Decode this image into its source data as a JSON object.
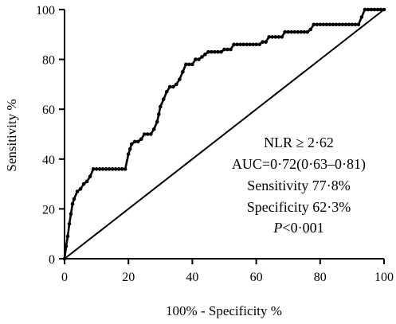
{
  "chart_data": {
    "type": "line",
    "xlabel": "100% - Specificity %",
    "ylabel": "Sensitivity %",
    "xlim": [
      0,
      100
    ],
    "ylim": [
      0,
      100
    ],
    "x_ticks": [
      "0",
      "20",
      "40",
      "60",
      "80",
      "100"
    ],
    "y_ticks": [
      "0",
      "20",
      "40",
      "60",
      "80",
      "100"
    ],
    "grid": false,
    "series": [
      {
        "name": "",
        "x": [
          0,
          0.5,
          1,
          1.5,
          2,
          2.5,
          3,
          4,
          5,
          6,
          7,
          8,
          9,
          10,
          11,
          12,
          13,
          14,
          15,
          16,
          17,
          18,
          19,
          20,
          20.5,
          21,
          22,
          23,
          24,
          25,
          26,
          27,
          28,
          29,
          29.5,
          30,
          31,
          32,
          33,
          34,
          35,
          36,
          37,
          38,
          39,
          40,
          41,
          42,
          43,
          44,
          45,
          46,
          47,
          48,
          49,
          50,
          51,
          52,
          53,
          54,
          55,
          56,
          57,
          58,
          59,
          60,
          61,
          62,
          63,
          64,
          65,
          66,
          67,
          68,
          69,
          70,
          71,
          72,
          73,
          74,
          75,
          76,
          77,
          78,
          79,
          80,
          81,
          82,
          83,
          84,
          85,
          86,
          87,
          88,
          89,
          90,
          91,
          92,
          93,
          94,
          95,
          96,
          97,
          98,
          99,
          100
        ],
        "y": [
          0,
          5,
          9,
          14,
          18,
          22,
          24,
          27,
          28,
          30,
          31,
          33,
          36,
          36,
          36,
          36,
          36,
          36,
          36,
          36,
          36,
          36,
          36,
          42,
          44,
          46,
          47,
          47,
          48,
          50,
          50,
          50,
          52,
          55,
          58,
          61,
          64,
          67,
          69,
          69,
          70,
          72,
          75,
          78,
          78,
          78,
          80,
          80,
          81,
          82,
          83,
          83,
          83,
          83,
          83,
          84,
          84,
          84,
          86,
          86,
          86,
          86,
          86,
          86,
          86,
          86,
          86,
          87,
          87,
          89,
          89,
          89,
          89,
          89,
          91,
          91,
          91,
          91,
          91,
          91,
          91,
          91,
          92,
          94,
          94,
          94,
          94,
          94,
          94,
          94,
          94,
          94,
          94,
          94,
          94,
          94,
          94,
          94,
          97,
          100,
          100,
          100,
          100,
          100,
          100,
          100
        ]
      },
      {
        "name": "",
        "x": [
          0,
          100
        ],
        "y": [
          0,
          100
        ]
      }
    ],
    "annotations": [
      "NLR ≥ 2·62",
      "AUC=0·72(0·63–0·81)",
      "Sensitivity 77·8%",
      "Specificity 62·3%"
    ],
    "p_value": {
      "symbol": "P",
      "rest": "<0·001"
    }
  }
}
